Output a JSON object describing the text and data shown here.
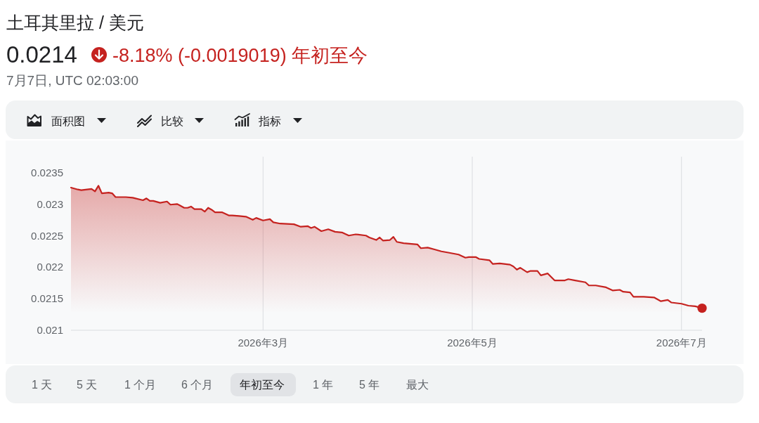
{
  "chart_data": {
    "type": "area",
    "title": "土耳其里拉 / 美元",
    "subtitle": "0.0214",
    "annotations": [
      "-8.18% (-0.0019019) 年初至今",
      "7月7日, UTC 02:03:00",
      "面积图",
      "比较",
      "指标",
      "1 天",
      "5 天",
      "1 个月",
      "6 个月",
      "年初至今",
      "1 年",
      "5 年",
      "最大"
    ],
    "x": [
      "2026-01-04",
      "2026-01-06",
      "2026-01-07",
      "2026-01-10",
      "2026-01-11",
      "2026-01-12",
      "2026-01-13",
      "2026-01-15",
      "2026-01-16",
      "2026-01-17",
      "2026-01-20",
      "2026-01-22",
      "2026-01-25",
      "2026-01-26",
      "2026-01-27",
      "2026-01-28",
      "2026-01-30",
      "2026-02-01",
      "2026-02-02",
      "2026-02-04",
      "2026-02-06",
      "2026-02-07",
      "2026-02-08",
      "2026-02-09",
      "2026-02-11",
      "2026-02-12",
      "2026-02-13",
      "2026-02-14",
      "2026-02-15",
      "2026-02-17",
      "2026-02-19",
      "2026-02-20",
      "2026-02-22",
      "2026-02-24",
      "2026-02-26",
      "2026-02-27",
      "2026-03-01",
      "2026-03-03",
      "2026-03-04",
      "2026-03-06",
      "2026-03-10",
      "2026-03-12",
      "2026-03-14",
      "2026-03-15",
      "2026-03-16",
      "2026-03-18",
      "2026-03-20",
      "2026-03-22",
      "2026-03-24",
      "2026-03-26",
      "2026-03-28",
      "2026-03-31",
      "2026-04-01",
      "2026-04-03",
      "2026-04-04",
      "2026-04-05",
      "2026-04-07",
      "2026-04-08",
      "2026-04-09",
      "2026-04-11",
      "2026-04-15",
      "2026-04-16",
      "2026-04-18",
      "2026-04-20",
      "2026-04-22",
      "2026-04-24",
      "2026-04-27",
      "2026-04-29",
      "2026-04-30",
      "2026-05-02",
      "2026-05-03",
      "2026-05-06",
      "2026-05-07",
      "2026-05-09",
      "2026-05-12",
      "2026-05-13",
      "2026-05-14",
      "2026-05-15",
      "2026-05-17",
      "2026-05-18",
      "2026-05-20",
      "2026-05-21",
      "2026-05-23",
      "2026-05-25",
      "2026-05-28",
      "2026-05-29",
      "2026-05-31",
      "2026-06-03",
      "2026-06-04",
      "2026-06-06",
      "2026-06-09",
      "2026-06-11",
      "2026-06-13",
      "2026-06-14",
      "2026-06-16",
      "2026-06-17",
      "2026-06-20",
      "2026-06-23",
      "2026-06-25",
      "2026-06-27",
      "2026-06-28",
      "2026-07-01",
      "2026-07-03",
      "2026-07-05",
      "2026-07-07"
    ],
    "series": [
      {
        "color": "#c5221f",
        "values": [
          0.02326,
          0.02323,
          0.02322,
          0.02324,
          0.0232,
          0.02329,
          0.02317,
          0.02318,
          0.02317,
          0.02311,
          0.02311,
          0.0231,
          0.02306,
          0.02309,
          0.02305,
          0.02305,
          0.02302,
          0.02304,
          0.02299,
          0.023,
          0.02294,
          0.02294,
          0.02296,
          0.02292,
          0.02292,
          0.02288,
          0.02294,
          0.02291,
          0.02287,
          0.02287,
          0.02282,
          0.02282,
          0.02281,
          0.0228,
          0.02275,
          0.02278,
          0.02274,
          0.02276,
          0.02271,
          0.02269,
          0.02268,
          0.02264,
          0.02265,
          0.02262,
          0.02264,
          0.02257,
          0.0226,
          0.02256,
          0.02255,
          0.0225,
          0.02252,
          0.0225,
          0.02247,
          0.02243,
          0.02247,
          0.02242,
          0.02243,
          0.02248,
          0.0224,
          0.02238,
          0.02236,
          0.0223,
          0.02231,
          0.02228,
          0.02225,
          0.02223,
          0.0222,
          0.02215,
          0.02216,
          0.02216,
          0.02213,
          0.02211,
          0.02205,
          0.02206,
          0.02204,
          0.02201,
          0.02196,
          0.02199,
          0.02192,
          0.02194,
          0.02194,
          0.02187,
          0.0219,
          0.02179,
          0.02179,
          0.02181,
          0.02179,
          0.02176,
          0.02171,
          0.02171,
          0.02168,
          0.02163,
          0.02164,
          0.02161,
          0.0216,
          0.02153,
          0.02153,
          0.02152,
          0.02146,
          0.02148,
          0.02144,
          0.02142,
          0.02139,
          0.02138,
          0.02135
        ]
      },
      {
        "type": "scatter",
        "color": "#c5221f",
        "marker": "circle",
        "x": [
          "2026-07-07"
        ],
        "values": [
          0.02135
        ]
      }
    ],
    "xlim": [
      "2026-01-04",
      "2026-07-07"
    ],
    "xticks": [
      {
        "value": "2026-03-01",
        "label": "2026年3月"
      },
      {
        "value": "2026-05-01",
        "label": "2026年5月"
      },
      {
        "value": "2026-07-01",
        "label": "2026年7月"
      }
    ],
    "ylim": [
      0.021,
      0.02375
    ],
    "yticks": [
      0.021,
      0.0215,
      0.022,
      0.0225,
      0.023,
      0.0235
    ],
    "grid": "x"
  }
}
